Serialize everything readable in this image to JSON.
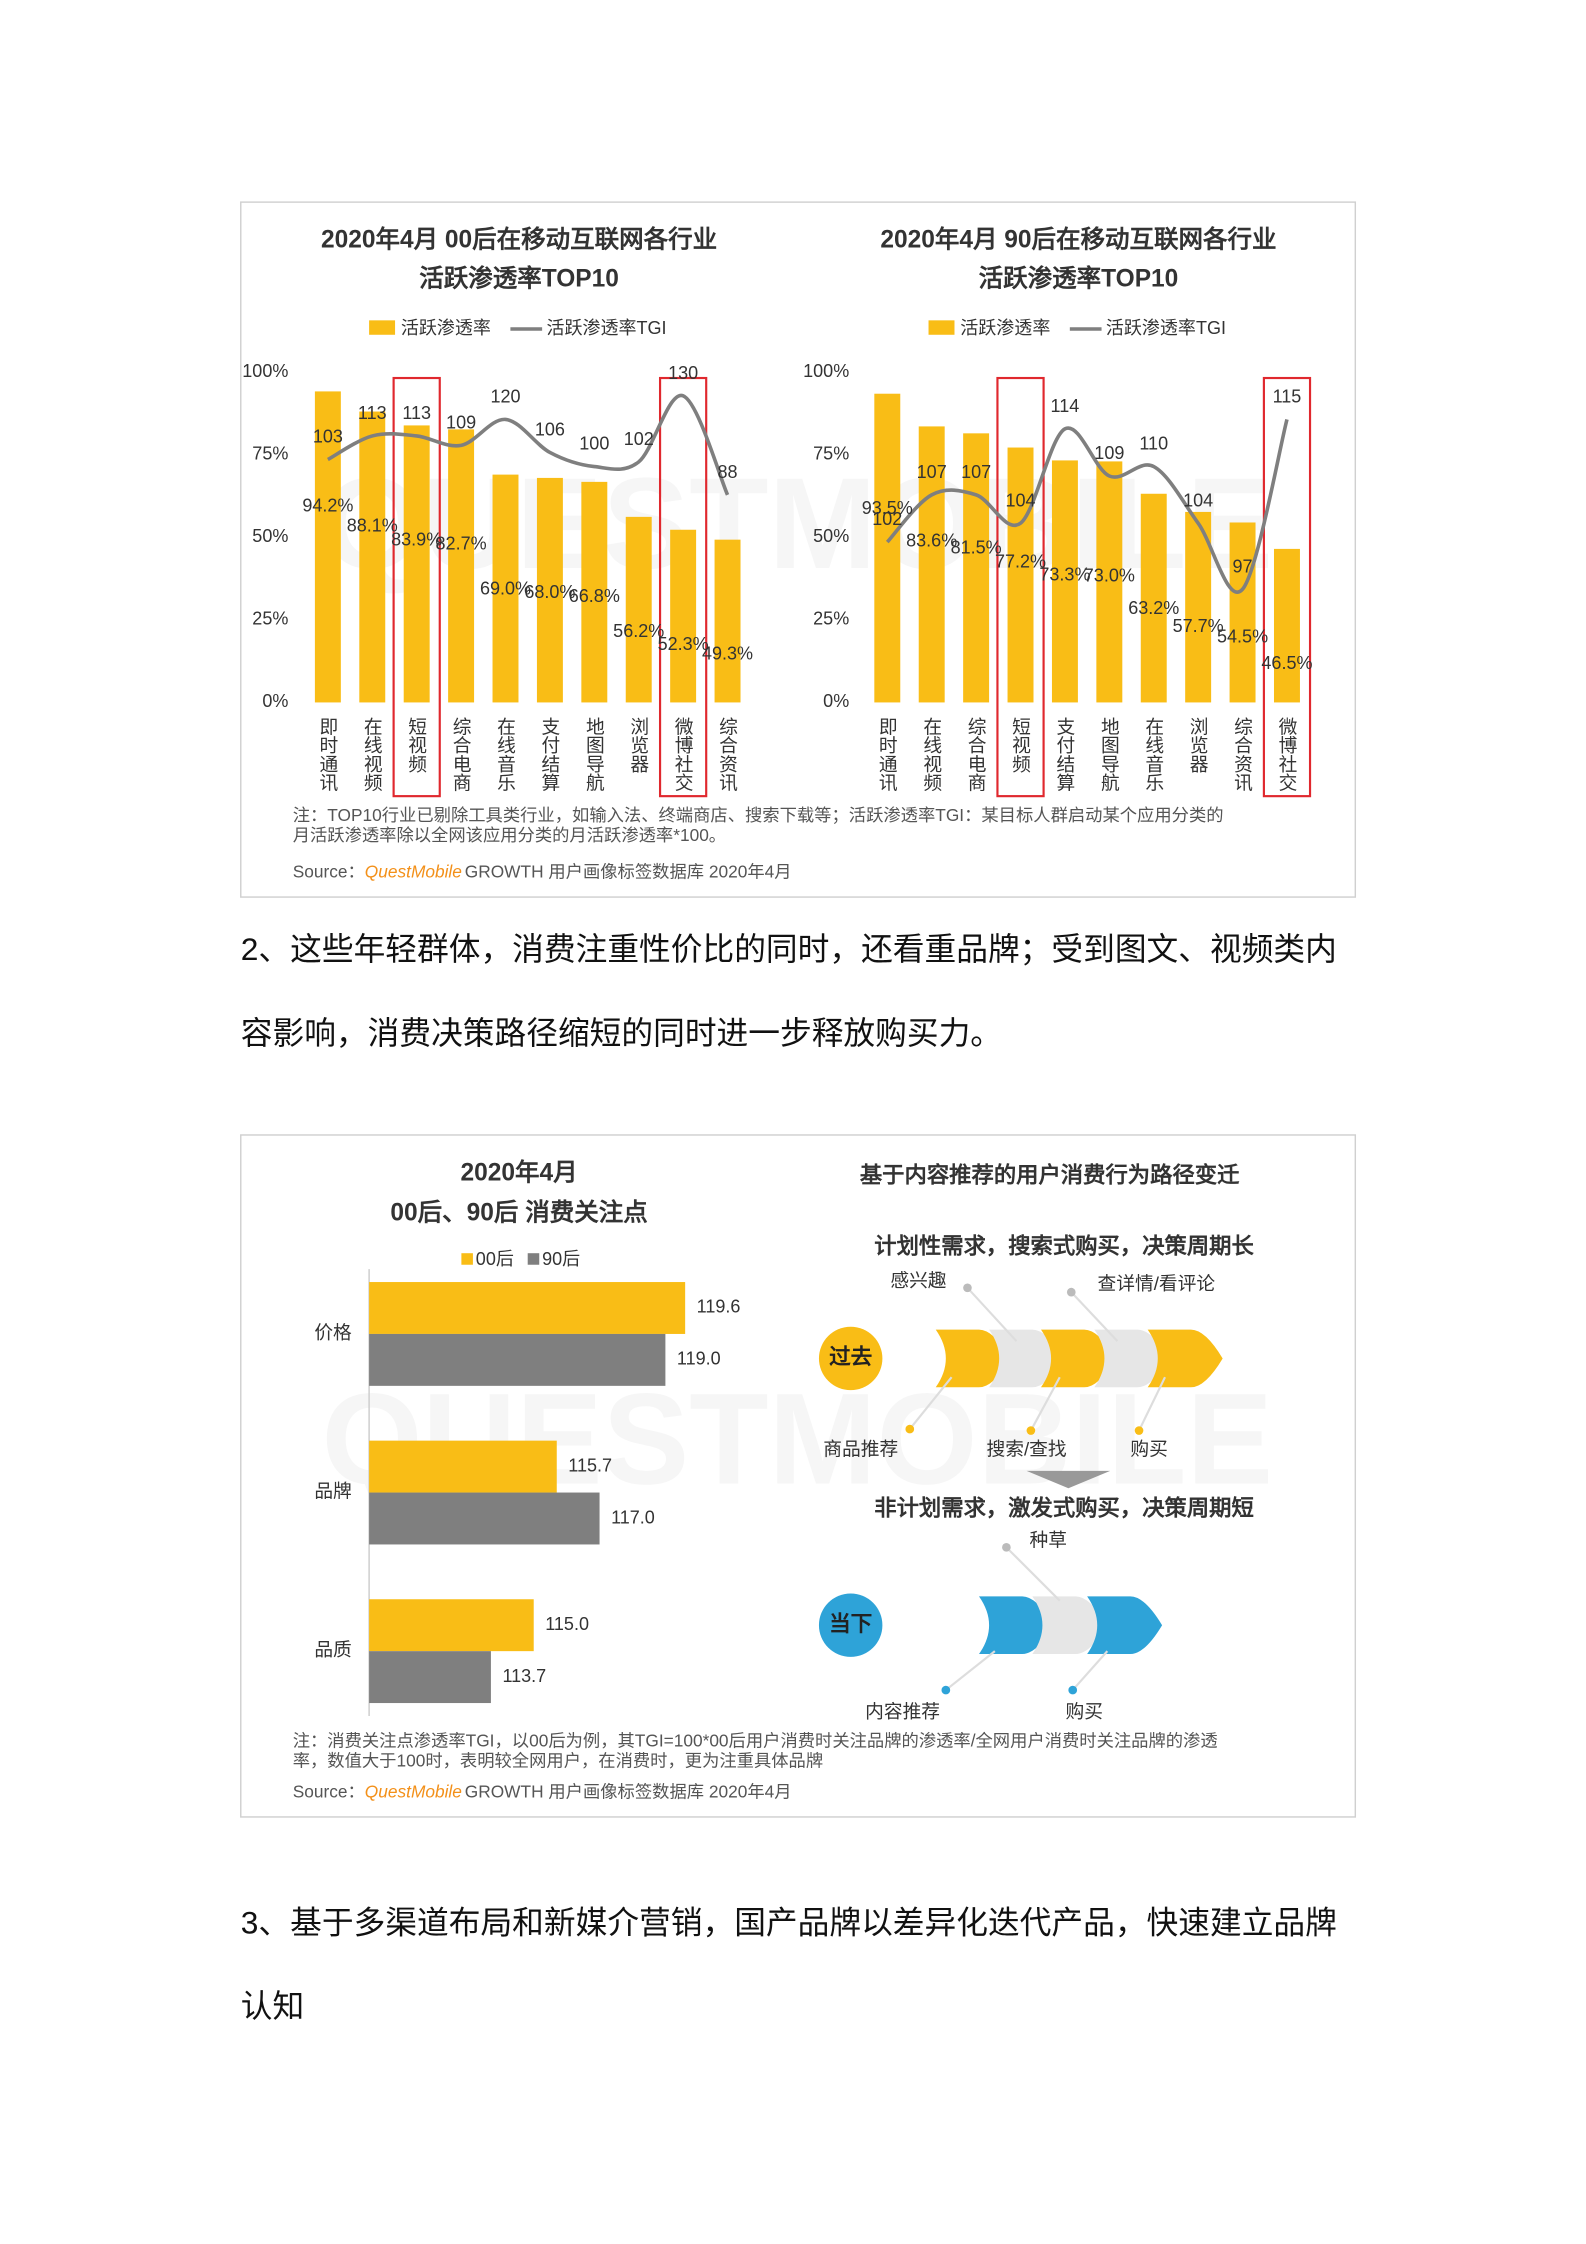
{
  "chart_data": [
    {
      "type": "bar",
      "title": [
        "2020年4月 00后在移动互联网各行业",
        "活跃渗透率TOP10"
      ],
      "categories": [
        "即时通讯",
        "在线视频",
        "短视频",
        "综合电商",
        "在线音乐",
        "支付结算",
        "地图导航",
        "浏览器",
        "微博社交",
        "综合资讯"
      ],
      "series": [
        {
          "name": "活跃渗透率",
          "type": "bar",
          "color": "#f9bd16",
          "values": [
            94.2,
            88.1,
            83.9,
            82.7,
            69.0,
            68.0,
            66.8,
            56.2,
            52.3,
            49.3
          ],
          "value_labels": [
            "94.2%",
            "88.1%",
            "83.9%",
            "82.7%",
            "69.0%",
            "68.0%",
            "66.8%",
            "56.2%",
            "52.3%",
            "49.3%"
          ]
        },
        {
          "name": "活跃渗透率TGI",
          "type": "line",
          "axis": "y2",
          "color": "#7f7f7f",
          "values": [
            103,
            113,
            113,
            109,
            120,
            106,
            100,
            102,
            130,
            88
          ]
        }
      ],
      "ylim": [
        0,
        100
      ],
      "yticks": [
        {
          "value": 0,
          "label": "0%"
        },
        {
          "value": 25,
          "label": "25%"
        },
        {
          "value": 50,
          "label": "50%"
        },
        {
          "value": 75,
          "label": "75%"
        },
        {
          "value": 100,
          "label": "100%"
        }
      ],
      "y2lim": [
        0,
        140
      ],
      "legend": "top",
      "highlight": [
        "短视频",
        "微博社交"
      ],
      "highlight_color": "#e0282e"
    },
    {
      "type": "bar",
      "title": [
        "2020年4月 90后在移动互联网各行业",
        "活跃渗透率TOP10"
      ],
      "categories": [
        "即时通讯",
        "在线视频",
        "综合电商",
        "短视频",
        "支付结算",
        "地图导航",
        "在线音乐",
        "浏览器",
        "综合资讯",
        "微博社交"
      ],
      "series": [
        {
          "name": "活跃渗透率",
          "type": "bar",
          "color": "#f9bd16",
          "values": [
            93.5,
            83.6,
            81.5,
            77.2,
            73.3,
            73.0,
            63.2,
            57.7,
            54.5,
            46.5
          ],
          "value_labels": [
            "93.5%",
            "83.6%",
            "81.5%",
            "77.2%",
            "73.3%",
            "73.0%",
            "63.2%",
            "57.7%",
            "54.5%",
            "46.5%"
          ]
        },
        {
          "name": "活跃渗透率TGI",
          "type": "line",
          "axis": "y2",
          "color": "#7f7f7f",
          "values": [
            102,
            107,
            107,
            104,
            114,
            109,
            110,
            104,
            97,
            115
          ]
        }
      ],
      "ylim": [
        0,
        100
      ],
      "yticks": [
        {
          "value": 0,
          "label": "0%"
        },
        {
          "value": 25,
          "label": "25%"
        },
        {
          "value": 50,
          "label": "50%"
        },
        {
          "value": 75,
          "label": "75%"
        },
        {
          "value": 100,
          "label": "100%"
        }
      ],
      "y2lim": [
        85,
        120
      ],
      "legend": "top",
      "highlight": [
        "短视频",
        "微博社交"
      ],
      "highlight_color": "#e0282e"
    },
    {
      "type": "hbar",
      "title": [
        "2020年4月",
        "00后、90后 消费关注点"
      ],
      "categories": [
        "价格",
        "品牌",
        "品质"
      ],
      "series": [
        {
          "name": "00后",
          "color": "#f9bd16",
          "values": [
            119.6,
            115.7,
            115.0
          ],
          "value_labels": [
            "119.6",
            "115.7",
            "115.0"
          ]
        },
        {
          "name": "90后",
          "color": "#7f7f7f",
          "values": [
            119.0,
            117.0,
            113.7
          ],
          "value_labels": [
            "119.0",
            "117.0",
            "113.7"
          ]
        }
      ],
      "xlim": [
        110,
        122
      ],
      "legend": "top"
    }
  ],
  "panel1": {
    "watermark": "QUESTMOBILE",
    "note": [
      "注：TOP10行业已剔除工具类行业，如输入法、终端商店、搜索下载等；活跃渗透率TGI：某目标人群启动某个应用分类的",
      "月活跃渗透率除以全网该应用分类的月活跃渗透率*100。"
    ],
    "source": {
      "label": "Source：",
      "brand": "QuestMobile",
      "text": "GROWTH 用户画像标签数据库 2020年4月"
    }
  },
  "paragraph2": [
    "2、这些年轻群体，消费注重性价比的同时，还看重品牌；受到图文、视频类内",
    "容影响，消费决策路径缩短的同时进一步释放购买力。"
  ],
  "panel2": {
    "watermark": "QUESTMOBILE",
    "diagram": {
      "title": "基于内容推荐的用户消费行为路径变迁",
      "past": {
        "heading": "计划性需求，搜索式购买，决策周期长",
        "badge": "过去",
        "top_labels": [
          "感兴趣",
          "查详情/看评论"
        ],
        "bottom_labels": [
          "商品推荐",
          "搜索/查找",
          "购买"
        ]
      },
      "now": {
        "heading": "非计划需求，激发式购买，决策周期短",
        "badge": "当下",
        "top_labels": [
          "种草"
        ],
        "bottom_labels": [
          "内容推荐",
          "购买"
        ]
      }
    },
    "note": [
      "注：消费关注点渗透率TGI，以00后为例，其TGI=100*00后用户消费时关注品牌的渗透率/全网用户消费时关注品牌的渗透",
      "率，数值大于100时，表明较全网用户，在消费时，更为注重具体品牌"
    ],
    "source": {
      "label": "Source：",
      "brand": "QuestMobile",
      "text": "GROWTH 用户画像标签数据库 2020年4月"
    }
  },
  "paragraph3": [
    "3、基于多渠道布局和新媒介营销，国产品牌以差异化迭代产品，快速建立品牌",
    "认知"
  ]
}
